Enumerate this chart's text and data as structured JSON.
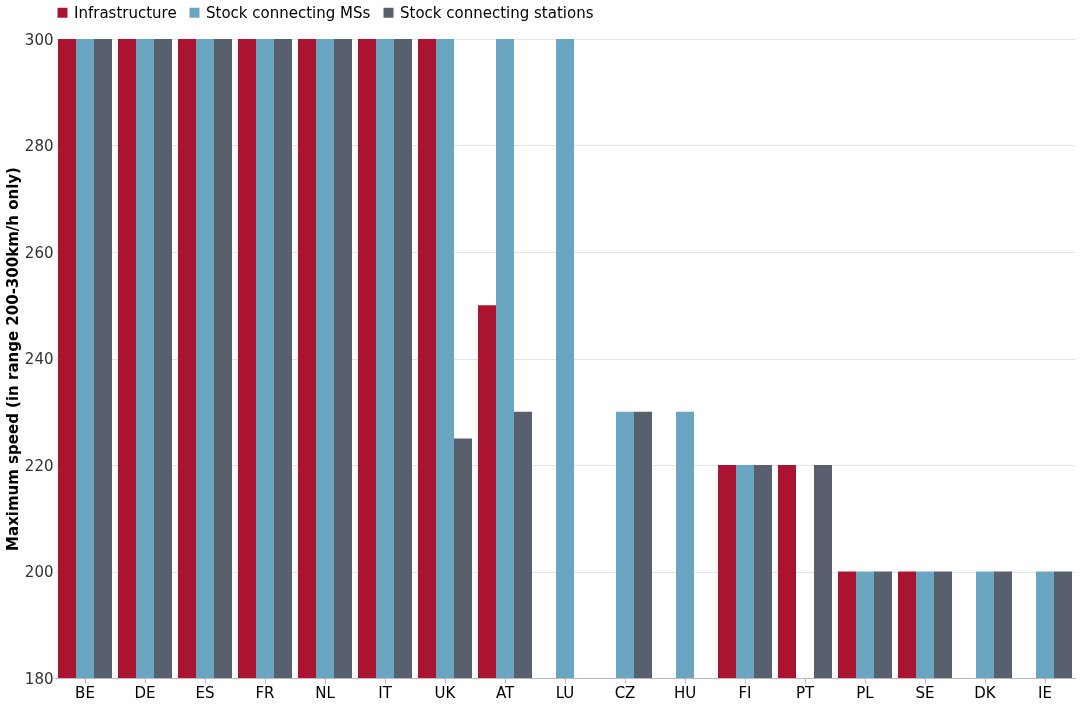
{
  "chart_data": {
    "type": "bar",
    "ylabel": "Maximum speed (in range 200-300km/h only)",
    "categories": [
      "BE",
      "DE",
      "ES",
      "FR",
      "NL",
      "IT",
      "UK",
      "AT",
      "LU",
      "CZ",
      "HU",
      "FI",
      "PT",
      "PL",
      "SE",
      "DK",
      "IE"
    ],
    "series": [
      {
        "name": "Infrastructure",
        "color": "#ab1431",
        "values": [
          300,
          300,
          300,
          300,
          300,
          300,
          300,
          250,
          180,
          180,
          180,
          220,
          220,
          200,
          200,
          null,
          180
        ]
      },
      {
        "name": "Stock connecting MSs",
        "color": "#6aa6c2",
        "values": [
          300,
          300,
          300,
          300,
          300,
          300,
          300,
          300,
          300,
          230,
          230,
          220,
          180,
          200,
          200,
          200,
          200
        ]
      },
      {
        "name": "Stock connecting stations",
        "color": "#57606c",
        "values": [
          300,
          300,
          300,
          300,
          300,
          300,
          225,
          230,
          180,
          230,
          180,
          220,
          220,
          200,
          200,
          200,
          200
        ]
      }
    ],
    "ylim": [
      180,
      300
    ],
    "yticks": [
      180,
      200,
      220,
      240,
      260,
      280,
      300
    ],
    "grid": "y",
    "legend": "top"
  }
}
